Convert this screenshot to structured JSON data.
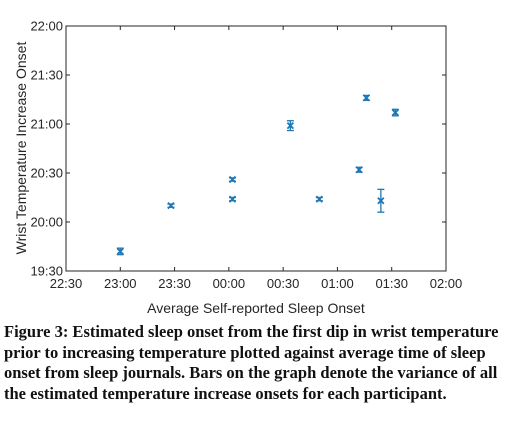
{
  "chart_data": {
    "type": "scatter",
    "xlabel": "Average Self-reported Sleep Onset",
    "ylabel": "Wrist Temperature Increase Onset",
    "x_ticks": [
      "22:30",
      "23:00",
      "23:30",
      "00:00",
      "00:30",
      "01:00",
      "01:30",
      "02:00"
    ],
    "y_ticks": [
      "19:30",
      "20:00",
      "20:30",
      "21:00",
      "21:30",
      "22:00"
    ],
    "x_unit": "minutes relative to midnight",
    "y_unit": "minutes relative to midnight",
    "xlim": [
      -90,
      120
    ],
    "ylim": [
      -270,
      -120
    ],
    "grid": false,
    "marker_color": "#1f77b4",
    "points": [
      {
        "x": -60,
        "y": -258,
        "err": 2
      },
      {
        "x": -32,
        "y": -230,
        "err": 1
      },
      {
        "x": 2,
        "y": -214,
        "err": 1
      },
      {
        "x": 2,
        "y": -226,
        "err": 1
      },
      {
        "x": 34,
        "y": -181,
        "err": 3
      },
      {
        "x": 50,
        "y": -226,
        "err": 1
      },
      {
        "x": 72,
        "y": -208,
        "err": 1.5
      },
      {
        "x": 76,
        "y": -164,
        "err": 1.5
      },
      {
        "x": 84,
        "y": -227,
        "err": 7
      },
      {
        "x": 92,
        "y": -173,
        "err": 2
      }
    ]
  },
  "caption": "Figure 3: Estimated sleep onset from the first dip in wrist temperature prior to increasing temperature plotted against average time of sleep onset from sleep journals. Bars on the graph denote the variance of all the estimated temperature increase onsets for each participant."
}
